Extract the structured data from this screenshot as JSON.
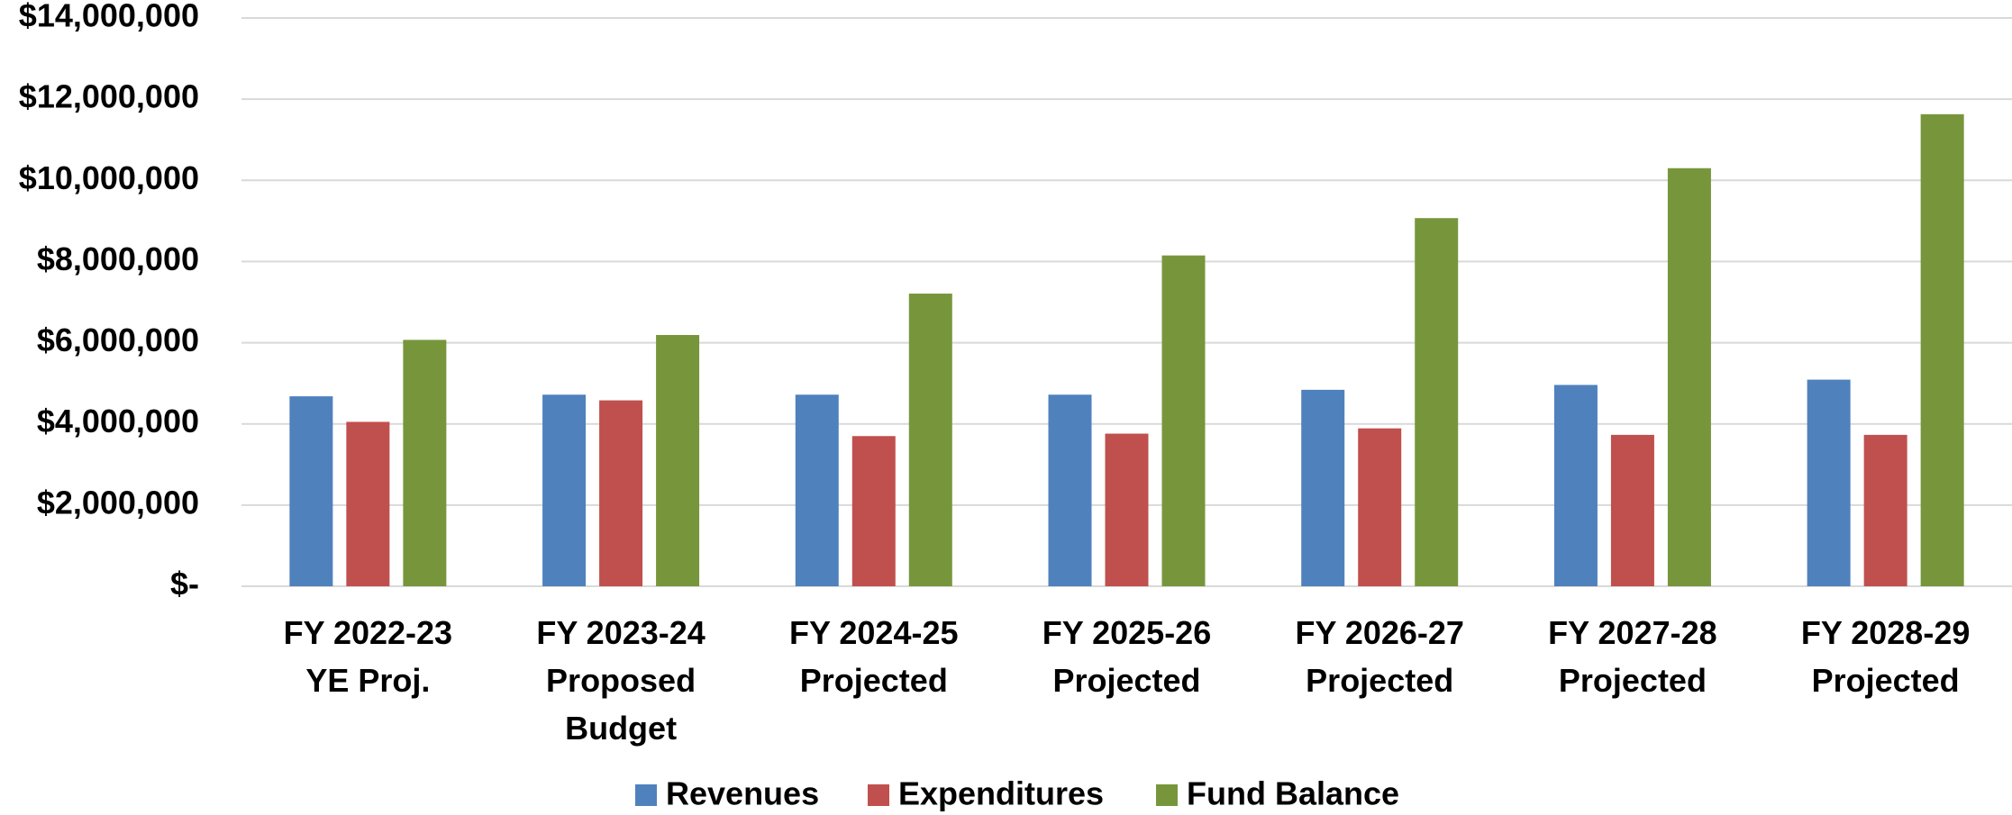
{
  "chart_data": {
    "type": "bar",
    "categories": [
      [
        "FY 2022-23",
        "YE Proj."
      ],
      [
        "FY 2023-24",
        "Proposed",
        "Budget"
      ],
      [
        "FY 2024-25",
        "Projected"
      ],
      [
        "FY 2025-26",
        "Projected"
      ],
      [
        "FY 2026-27",
        "Projected"
      ],
      [
        "FY 2027-28",
        "Projected"
      ],
      [
        "FY 2028-29",
        "Projected"
      ]
    ],
    "series": [
      {
        "name": "Revenues",
        "color": "#4f81bd",
        "values": [
          4680000,
          4720000,
          4720000,
          4720000,
          4840000,
          4960000,
          5090000
        ]
      },
      {
        "name": "Expenditures",
        "color": "#c0504d",
        "values": [
          4050000,
          4580000,
          3700000,
          3760000,
          3890000,
          3730000,
          3730000
        ]
      },
      {
        "name": "Fund Balance",
        "color": "#77963c",
        "values": [
          6070000,
          6190000,
          7210000,
          8150000,
          9070000,
          10300000,
          11630000
        ]
      }
    ],
    "ylim": [
      0,
      14000000
    ],
    "yticks": [
      {
        "value": 0,
        "label": "$-"
      },
      {
        "value": 2000000,
        "label": "$2,000,000"
      },
      {
        "value": 4000000,
        "label": "$4,000,000"
      },
      {
        "value": 6000000,
        "label": "$6,000,000"
      },
      {
        "value": 8000000,
        "label": "$8,000,000"
      },
      {
        "value": 10000000,
        "label": "$10,000,000"
      },
      {
        "value": 12000000,
        "label": "$12,000,000"
      },
      {
        "value": 14000000,
        "label": "$14,000,000"
      }
    ],
    "grid": true,
    "legend": "bottom"
  }
}
